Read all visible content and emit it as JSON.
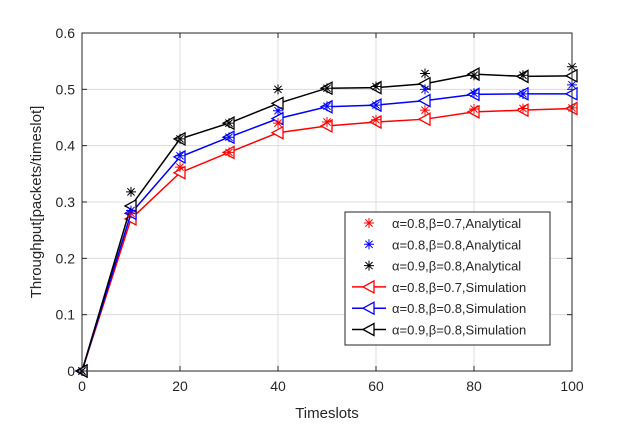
{
  "chart_data": {
    "type": "line",
    "title": "",
    "xlabel": "Timeslots",
    "ylabel": "Throughput[packets/timeslot]",
    "xlim": [
      0,
      100
    ],
    "ylim": [
      0,
      0.6
    ],
    "xticks": [
      0,
      20,
      40,
      60,
      80,
      100
    ],
    "yticks": [
      0,
      0.1,
      0.2,
      0.3,
      0.4,
      0.5,
      0.6
    ],
    "xtick_labels": [
      "0",
      "20",
      "40",
      "60",
      "80",
      "100"
    ],
    "ytick_labels": [
      "0",
      "0.1",
      "0.2",
      "0.3",
      "0.4",
      "0.5",
      "0.6"
    ],
    "grid": true,
    "legend_position": "bottom-right",
    "series": [
      {
        "name": "α=0.8,β=0.7,Analytical",
        "kind": "analytical",
        "color": "#ff0000",
        "marker": "asterisk",
        "x": [
          0,
          10,
          20,
          30,
          40,
          50,
          60,
          70,
          80,
          90,
          100
        ],
        "values": [
          0,
          0.28,
          0.362,
          0.388,
          0.44,
          0.442,
          0.446,
          0.463,
          0.465,
          0.466,
          0.467
        ]
      },
      {
        "name": "α=0.8,β=0.8,Analytical",
        "kind": "analytical",
        "color": "#0000ff",
        "marker": "asterisk",
        "x": [
          0,
          10,
          20,
          30,
          40,
          50,
          60,
          70,
          80,
          90,
          100
        ],
        "values": [
          0,
          0.285,
          0.382,
          0.415,
          0.462,
          0.47,
          0.472,
          0.5,
          0.493,
          0.492,
          0.508
        ]
      },
      {
        "name": "α=0.9,β=0.8,Analytical",
        "kind": "analytical",
        "color": "#000000",
        "marker": "asterisk",
        "x": [
          0,
          10,
          20,
          30,
          40,
          50,
          60,
          70,
          80,
          90,
          100
        ],
        "values": [
          0,
          0.318,
          0.412,
          0.44,
          0.5,
          0.502,
          0.505,
          0.528,
          0.525,
          0.525,
          0.54
        ]
      },
      {
        "name": "α=0.8,β=0.7,Simulation",
        "kind": "simulation",
        "color": "#ff0000",
        "marker": "triangle-left",
        "x": [
          0,
          10,
          20,
          30,
          40,
          50,
          60,
          70,
          80,
          90,
          100
        ],
        "values": [
          0,
          0.27,
          0.352,
          0.388,
          0.423,
          0.435,
          0.442,
          0.447,
          0.46,
          0.463,
          0.466
        ]
      },
      {
        "name": "α=0.8,β=0.8,Simulation",
        "kind": "simulation",
        "color": "#0000ff",
        "marker": "triangle-left",
        "x": [
          0,
          10,
          20,
          30,
          40,
          50,
          60,
          70,
          80,
          90,
          100
        ],
        "values": [
          0,
          0.28,
          0.38,
          0.415,
          0.448,
          0.469,
          0.472,
          0.48,
          0.491,
          0.492,
          0.492
        ]
      },
      {
        "name": "α=0.9,β=0.8,Simulation",
        "kind": "simulation",
        "color": "#000000",
        "marker": "triangle-left",
        "x": [
          0,
          10,
          20,
          30,
          40,
          50,
          60,
          70,
          80,
          90,
          100
        ],
        "values": [
          0,
          0.293,
          0.412,
          0.44,
          0.475,
          0.502,
          0.503,
          0.51,
          0.527,
          0.523,
          0.524
        ]
      }
    ]
  }
}
